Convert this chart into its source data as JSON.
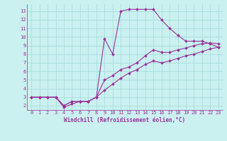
{
  "background_color": "#caf0f0",
  "grid_color": "#aadddd",
  "line_color": "#993399",
  "markersize": 2.0,
  "linewidth": 0.8,
  "xlabel": "Windchill (Refroidissement éolien,°C)",
  "xlabel_fontsize": 5.5,
  "tick_fontsize": 5.0,
  "xlim": [
    -0.5,
    23.5
  ],
  "ylim": [
    1.5,
    13.8
  ],
  "xticks": [
    0,
    1,
    2,
    3,
    4,
    5,
    6,
    7,
    8,
    9,
    10,
    11,
    12,
    13,
    14,
    15,
    16,
    17,
    18,
    19,
    20,
    21,
    22,
    23
  ],
  "yticks": [
    2,
    3,
    4,
    5,
    6,
    7,
    8,
    9,
    10,
    11,
    12,
    13
  ],
  "lines": [
    {
      "x": [
        0,
        1,
        2,
        3,
        4,
        5,
        6,
        7,
        8,
        9,
        10,
        11,
        12,
        13,
        14,
        15,
        16,
        17,
        18,
        19,
        20,
        21,
        22,
        23
      ],
      "y": [
        3.0,
        3.0,
        3.0,
        3.0,
        2.0,
        2.5,
        2.5,
        2.5,
        3.0,
        9.8,
        8.0,
        13.0,
        13.2,
        13.2,
        13.2,
        13.2,
        12.0,
        11.0,
        10.2,
        9.5,
        9.5,
        9.5,
        9.2,
        8.8
      ]
    },
    {
      "x": [
        0,
        1,
        2,
        3,
        4,
        5,
        6,
        7,
        8,
        9,
        10,
        11,
        12,
        13,
        14,
        15,
        16,
        17,
        18,
        19,
        20,
        21,
        22,
        23
      ],
      "y": [
        3.0,
        3.0,
        3.0,
        3.0,
        1.8,
        2.2,
        2.5,
        2.5,
        3.0,
        5.0,
        5.5,
        6.2,
        6.5,
        7.0,
        7.8,
        8.5,
        8.2,
        8.2,
        8.5,
        8.7,
        9.0,
        9.2,
        9.3,
        9.2
      ]
    },
    {
      "x": [
        0,
        1,
        2,
        3,
        4,
        5,
        6,
        7,
        8,
        9,
        10,
        11,
        12,
        13,
        14,
        15,
        16,
        17,
        18,
        19,
        20,
        21,
        22,
        23
      ],
      "y": [
        3.0,
        3.0,
        3.0,
        3.0,
        2.0,
        2.5,
        2.5,
        2.5,
        3.0,
        3.8,
        4.5,
        5.2,
        5.8,
        6.2,
        6.8,
        7.2,
        7.0,
        7.2,
        7.5,
        7.8,
        8.0,
        8.3,
        8.6,
        8.8
      ]
    }
  ]
}
